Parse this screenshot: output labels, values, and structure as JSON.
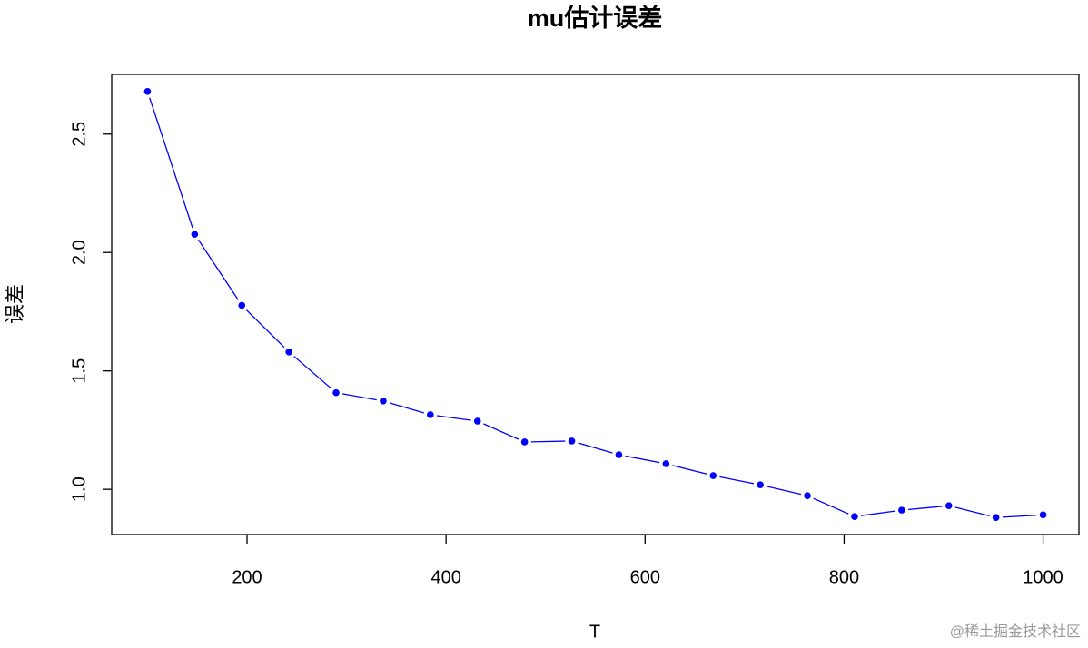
{
  "chart_data": {
    "type": "line",
    "title": "mu估计误差",
    "x_label": "T",
    "y_label": "误差",
    "x": [
      100,
      147.37,
      194.74,
      242.11,
      289.47,
      336.84,
      384.21,
      431.58,
      478.95,
      526.32,
      573.68,
      621.05,
      668.42,
      715.79,
      763.16,
      810.53,
      857.89,
      905.26,
      952.63,
      1000
    ],
    "values": [
      2.68,
      2.077,
      1.777,
      1.58,
      1.408,
      1.373,
      1.315,
      1.288,
      1.2,
      1.204,
      1.146,
      1.108,
      1.058,
      1.019,
      0.973,
      0.885,
      0.912,
      0.931,
      0.881,
      0.892
    ],
    "color": "#0000ff",
    "markers": true,
    "xlim": [
      64,
      1036
    ],
    "ylim": [
      0.809,
      2.752
    ],
    "xticks": [
      200,
      400,
      600,
      800,
      1000
    ],
    "yticks": [
      {
        "value": 1,
        "label": "1.0"
      },
      1.5,
      {
        "value": 2,
        "label": "2.0"
      },
      2.5
    ],
    "watermark": "@稀土掘金技术社区"
  }
}
